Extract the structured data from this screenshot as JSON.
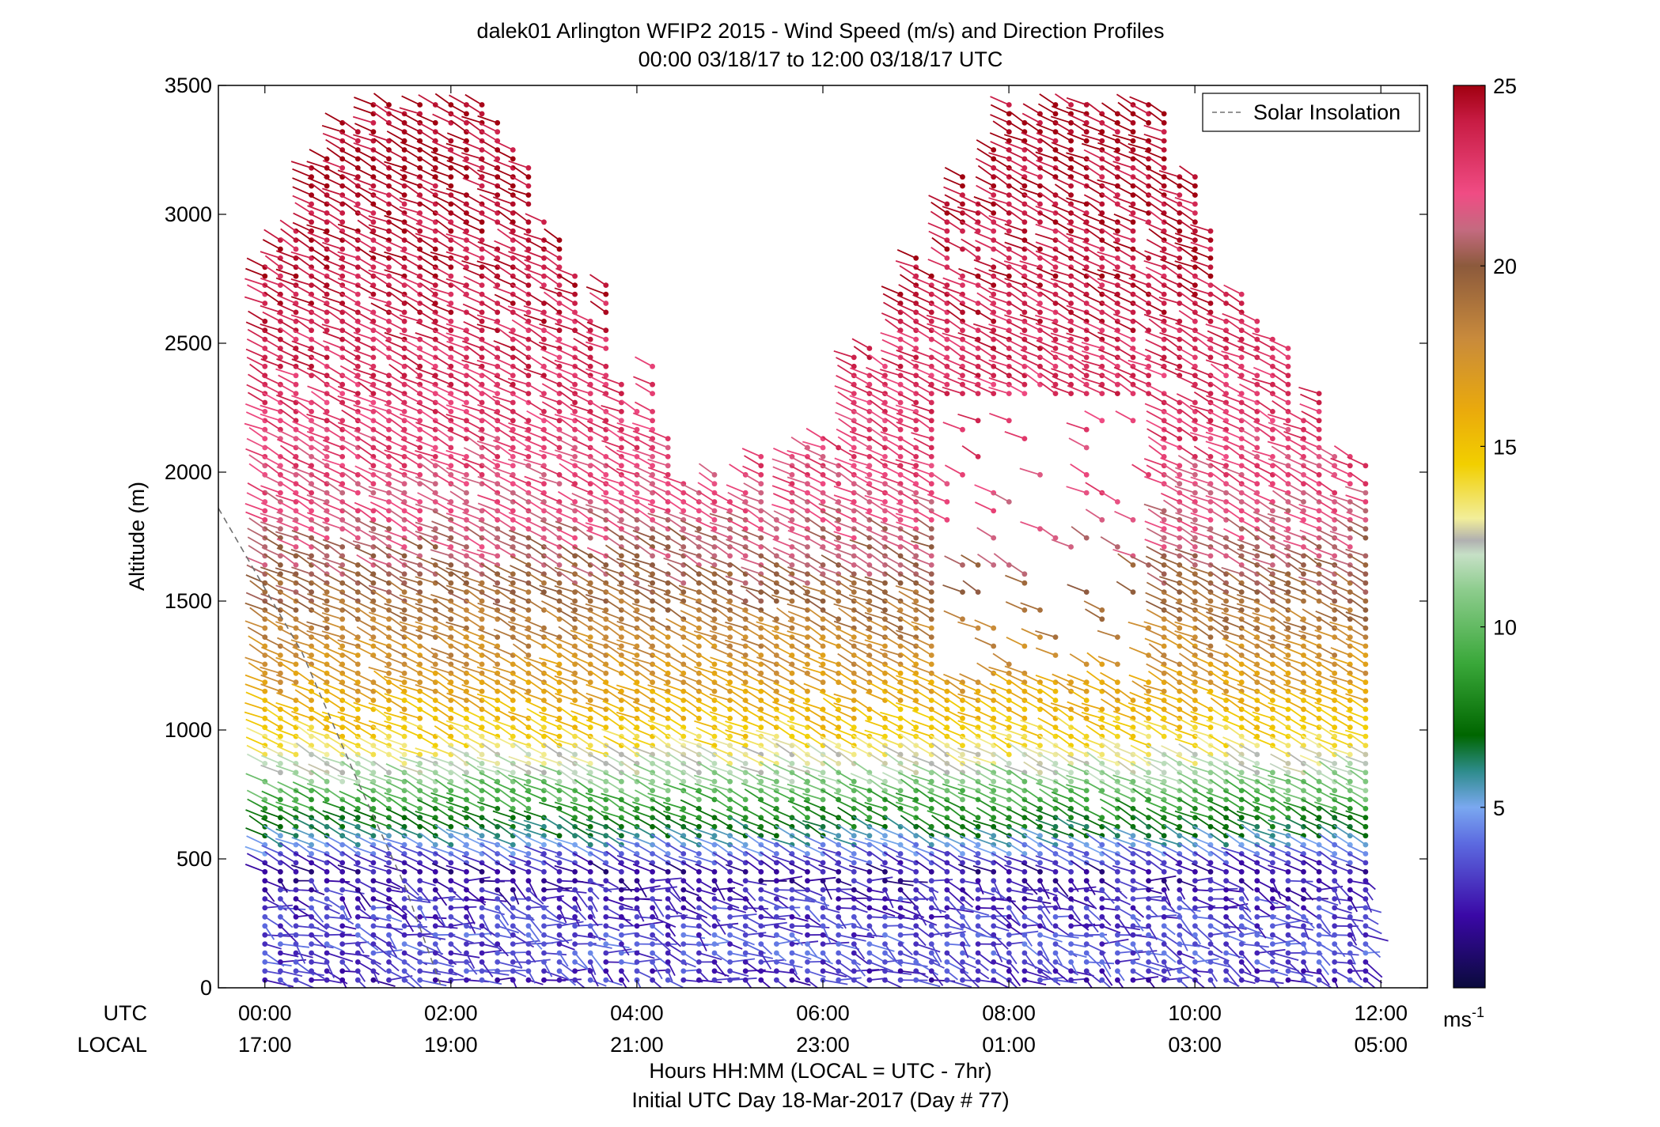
{
  "chart_data": {
    "type": "scatter",
    "title": "dalek01 Arlington WFIP2 2015 - Wind Speed (m/s) and Direction Profiles",
    "subtitle": "00:00 03/18/17 to 12:00 03/18/17  UTC",
    "ylabel": "Altitude (m)",
    "xlabel": "Hours HH:MM  (LOCAL = UTC - 7hr)",
    "xlabel2": "Initial UTC Day 18-Mar-2017 (Day # 77)",
    "ylim": [
      0,
      3500
    ],
    "xlim": [
      -0.5,
      12.5
    ],
    "yticks": [
      0,
      500,
      1000,
      1500,
      2000,
      2500,
      3000,
      3500
    ],
    "xticks": [
      0,
      2,
      4,
      6,
      8,
      10,
      12
    ],
    "utc_row_label": "UTC",
    "local_row_label": "LOCAL",
    "utc_tick_labels": [
      "00:00",
      "02:00",
      "04:00",
      "06:00",
      "08:00",
      "10:00",
      "12:00"
    ],
    "local_tick_labels": [
      "17:00",
      "19:00",
      "21:00",
      "23:00",
      "01:00",
      "03:00",
      "05:00"
    ],
    "legend": {
      "label": "Solar Insolation",
      "placement": "top-right",
      "style": "dashed",
      "color": "#808080"
    },
    "colorbar": {
      "min": 0,
      "max": 25,
      "ticks": [
        5,
        10,
        15,
        20,
        25
      ],
      "unit_label": "ms",
      "unit_exponent": "-1",
      "stops": [
        {
          "v": 0,
          "c": "#0a0a3c"
        },
        {
          "v": 2,
          "c": "#3a08a6"
        },
        {
          "v": 4,
          "c": "#5c6ae0"
        },
        {
          "v": 5,
          "c": "#7aa8f0"
        },
        {
          "v": 6,
          "c": "#2e8c8c"
        },
        {
          "v": 7,
          "c": "#006600"
        },
        {
          "v": 9,
          "c": "#3aa83a"
        },
        {
          "v": 11,
          "c": "#8ccc8c"
        },
        {
          "v": 12,
          "c": "#c6e0c6"
        },
        {
          "v": 12.4,
          "c": "#b0b0b0"
        },
        {
          "v": 13,
          "c": "#f2ee9a"
        },
        {
          "v": 14.5,
          "c": "#f2cf00"
        },
        {
          "v": 16,
          "c": "#eaaa0c"
        },
        {
          "v": 18,
          "c": "#c88a3c"
        },
        {
          "v": 20,
          "c": "#8c5a3c"
        },
        {
          "v": 21,
          "c": "#c46a80"
        },
        {
          "v": 22,
          "c": "#f04c84"
        },
        {
          "v": 24,
          "c": "#c81c44"
        },
        {
          "v": 25,
          "c": "#a00010"
        }
      ]
    },
    "solar_insolation_line": [
      {
        "t": -0.5,
        "alt": 1860
      },
      {
        "t": 0.4,
        "alt": 1300
      },
      {
        "t": 1.0,
        "alt": 800
      },
      {
        "t": 1.5,
        "alt": 400
      },
      {
        "t": 1.9,
        "alt": 0
      }
    ],
    "profile_times": {
      "start": 0,
      "end": 12,
      "step": 0.1667
    },
    "speed_profile_keypoints": [
      {
        "alt": 0,
        "speed": 2.5
      },
      {
        "alt": 150,
        "speed": 3.5
      },
      {
        "alt": 300,
        "speed": 3.0
      },
      {
        "alt": 450,
        "speed": 2.0
      },
      {
        "alt": 600,
        "speed": 6.5
      },
      {
        "alt": 800,
        "speed": 11.0
      },
      {
        "alt": 950,
        "speed": 14.0
      },
      {
        "alt": 1150,
        "speed": 16.5
      },
      {
        "alt": 1400,
        "speed": 18.5
      },
      {
        "alt": 1650,
        "speed": 20.5
      },
      {
        "alt": 1900,
        "speed": 22.0
      },
      {
        "alt": 2300,
        "speed": 23.0
      },
      {
        "alt": 2700,
        "speed": 24.0
      },
      {
        "alt": 3500,
        "speed": 25.0
      }
    ],
    "vector_direction_deg": 235,
    "low_level_direction_deg": 60
  }
}
